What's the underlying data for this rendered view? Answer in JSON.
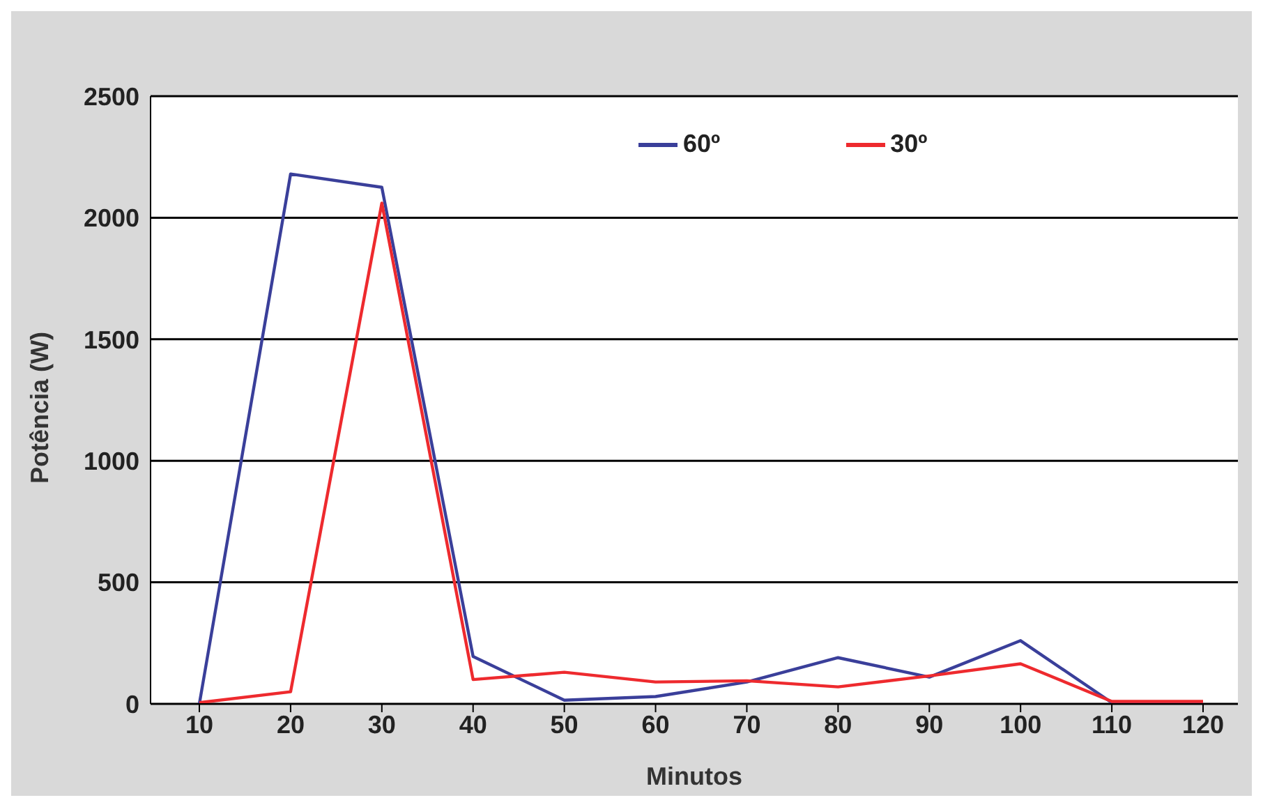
{
  "chart_data": {
    "type": "line",
    "xlabel": "Minutos",
    "ylabel": "Potência (W)",
    "categories": [
      "10",
      "20",
      "30",
      "40",
      "50",
      "60",
      "70",
      "80",
      "90",
      "100",
      "110",
      "120"
    ],
    "series": [
      {
        "name": "60º",
        "color": "#3a3f9a",
        "values": [
          0,
          2180,
          2125,
          195,
          15,
          30,
          90,
          190,
          110,
          260,
          5,
          5
        ]
      },
      {
        "name": "30º",
        "color": "#ee2a2e",
        "values": [
          5,
          50,
          2060,
          100,
          130,
          90,
          95,
          70,
          115,
          165,
          10,
          10
        ]
      }
    ],
    "ylim": [
      0,
      2500
    ],
    "yticks": [
      0,
      500,
      1000,
      1500,
      2000,
      2500
    ],
    "grid": "y",
    "legend": "top right",
    "marker": "none",
    "line_style": "solid"
  }
}
